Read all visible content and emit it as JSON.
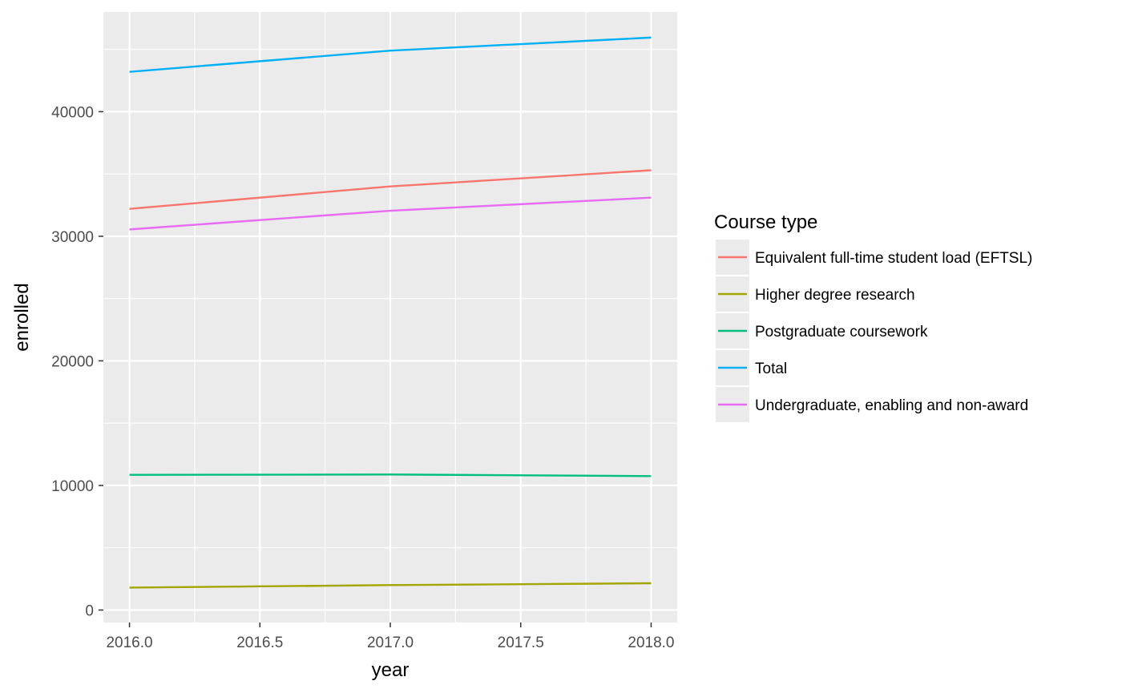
{
  "chart_data": {
    "type": "line",
    "title": "",
    "xlabel": "year",
    "ylabel": "enrolled",
    "xlim": [
      2015.9,
      2018.1
    ],
    "ylim": [
      -1000,
      48000
    ],
    "x_ticks": [
      2016.0,
      2016.5,
      2017.0,
      2017.5,
      2018.0
    ],
    "x_tick_labels": [
      "2016.0",
      "2016.5",
      "2017.0",
      "2017.5",
      "2018.0"
    ],
    "y_ticks": [
      0,
      10000,
      20000,
      30000,
      40000
    ],
    "y_tick_labels": [
      "0",
      "10000",
      "20000",
      "30000",
      "40000"
    ],
    "grid": true,
    "legend": {
      "title": "Course type",
      "placement": "right"
    },
    "x": [
      2016,
      2017,
      2018
    ],
    "series": [
      {
        "name": "Equivalent full-time student load (EFTSL)",
        "color": "#F8766D",
        "values": [
          32200,
          34000,
          35300
        ]
      },
      {
        "name": "Higher degree research",
        "color": "#A3A500",
        "values": [
          1800,
          2000,
          2150
        ]
      },
      {
        "name": "Postgraduate coursework",
        "color": "#00BF7D",
        "values": [
          10850,
          10880,
          10750
        ]
      },
      {
        "name": "Total",
        "color": "#00B0F6",
        "values": [
          43200,
          44900,
          45950
        ]
      },
      {
        "name": "Undergraduate, enabling and non-award",
        "color": "#E76BF3",
        "values": [
          30550,
          32050,
          33100
        ]
      }
    ]
  }
}
